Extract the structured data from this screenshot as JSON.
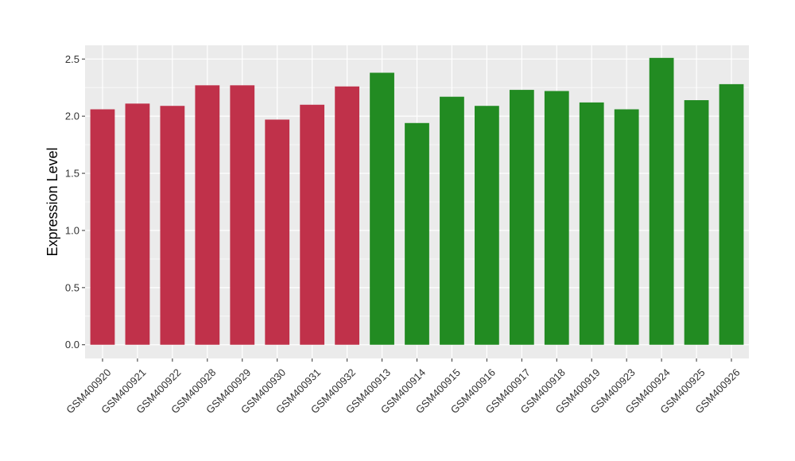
{
  "chart_data": {
    "type": "bar",
    "title": "",
    "xlabel": "",
    "ylabel": "Expression Level",
    "ylim": [
      -0.12,
      2.62
    ],
    "yticks": [
      "0.0",
      "0.5",
      "1.0",
      "1.5",
      "2.0",
      "2.5"
    ],
    "grid": true,
    "legend": "none",
    "categories": [
      "GSM400920",
      "GSM400921",
      "GSM400922",
      "GSM400928",
      "GSM400929",
      "GSM400930",
      "GSM400931",
      "GSM400932",
      "GSM400913",
      "GSM400914",
      "GSM400915",
      "GSM400916",
      "GSM400917",
      "GSM400918",
      "GSM400919",
      "GSM400923",
      "GSM400924",
      "GSM400925",
      "GSM400926"
    ],
    "values": [
      2.06,
      2.11,
      2.09,
      2.27,
      2.27,
      1.97,
      2.1,
      2.26,
      2.38,
      1.94,
      2.17,
      2.09,
      2.23,
      2.22,
      2.12,
      2.06,
      2.51,
      2.14,
      2.28
    ],
    "group_colors": [
      "#C0314A",
      "#C0314A",
      "#C0314A",
      "#C0314A",
      "#C0314A",
      "#C0314A",
      "#C0314A",
      "#C0314A",
      "#228B22",
      "#228B22",
      "#228B22",
      "#228B22",
      "#228B22",
      "#228B22",
      "#228B22",
      "#228B22",
      "#228B22",
      "#228B22",
      "#228B22"
    ]
  },
  "colors": {
    "panel_bg": "#EBEBEB",
    "grid": "#FFFFFF",
    "red_group": "#C0314A",
    "green_group": "#228B22"
  }
}
